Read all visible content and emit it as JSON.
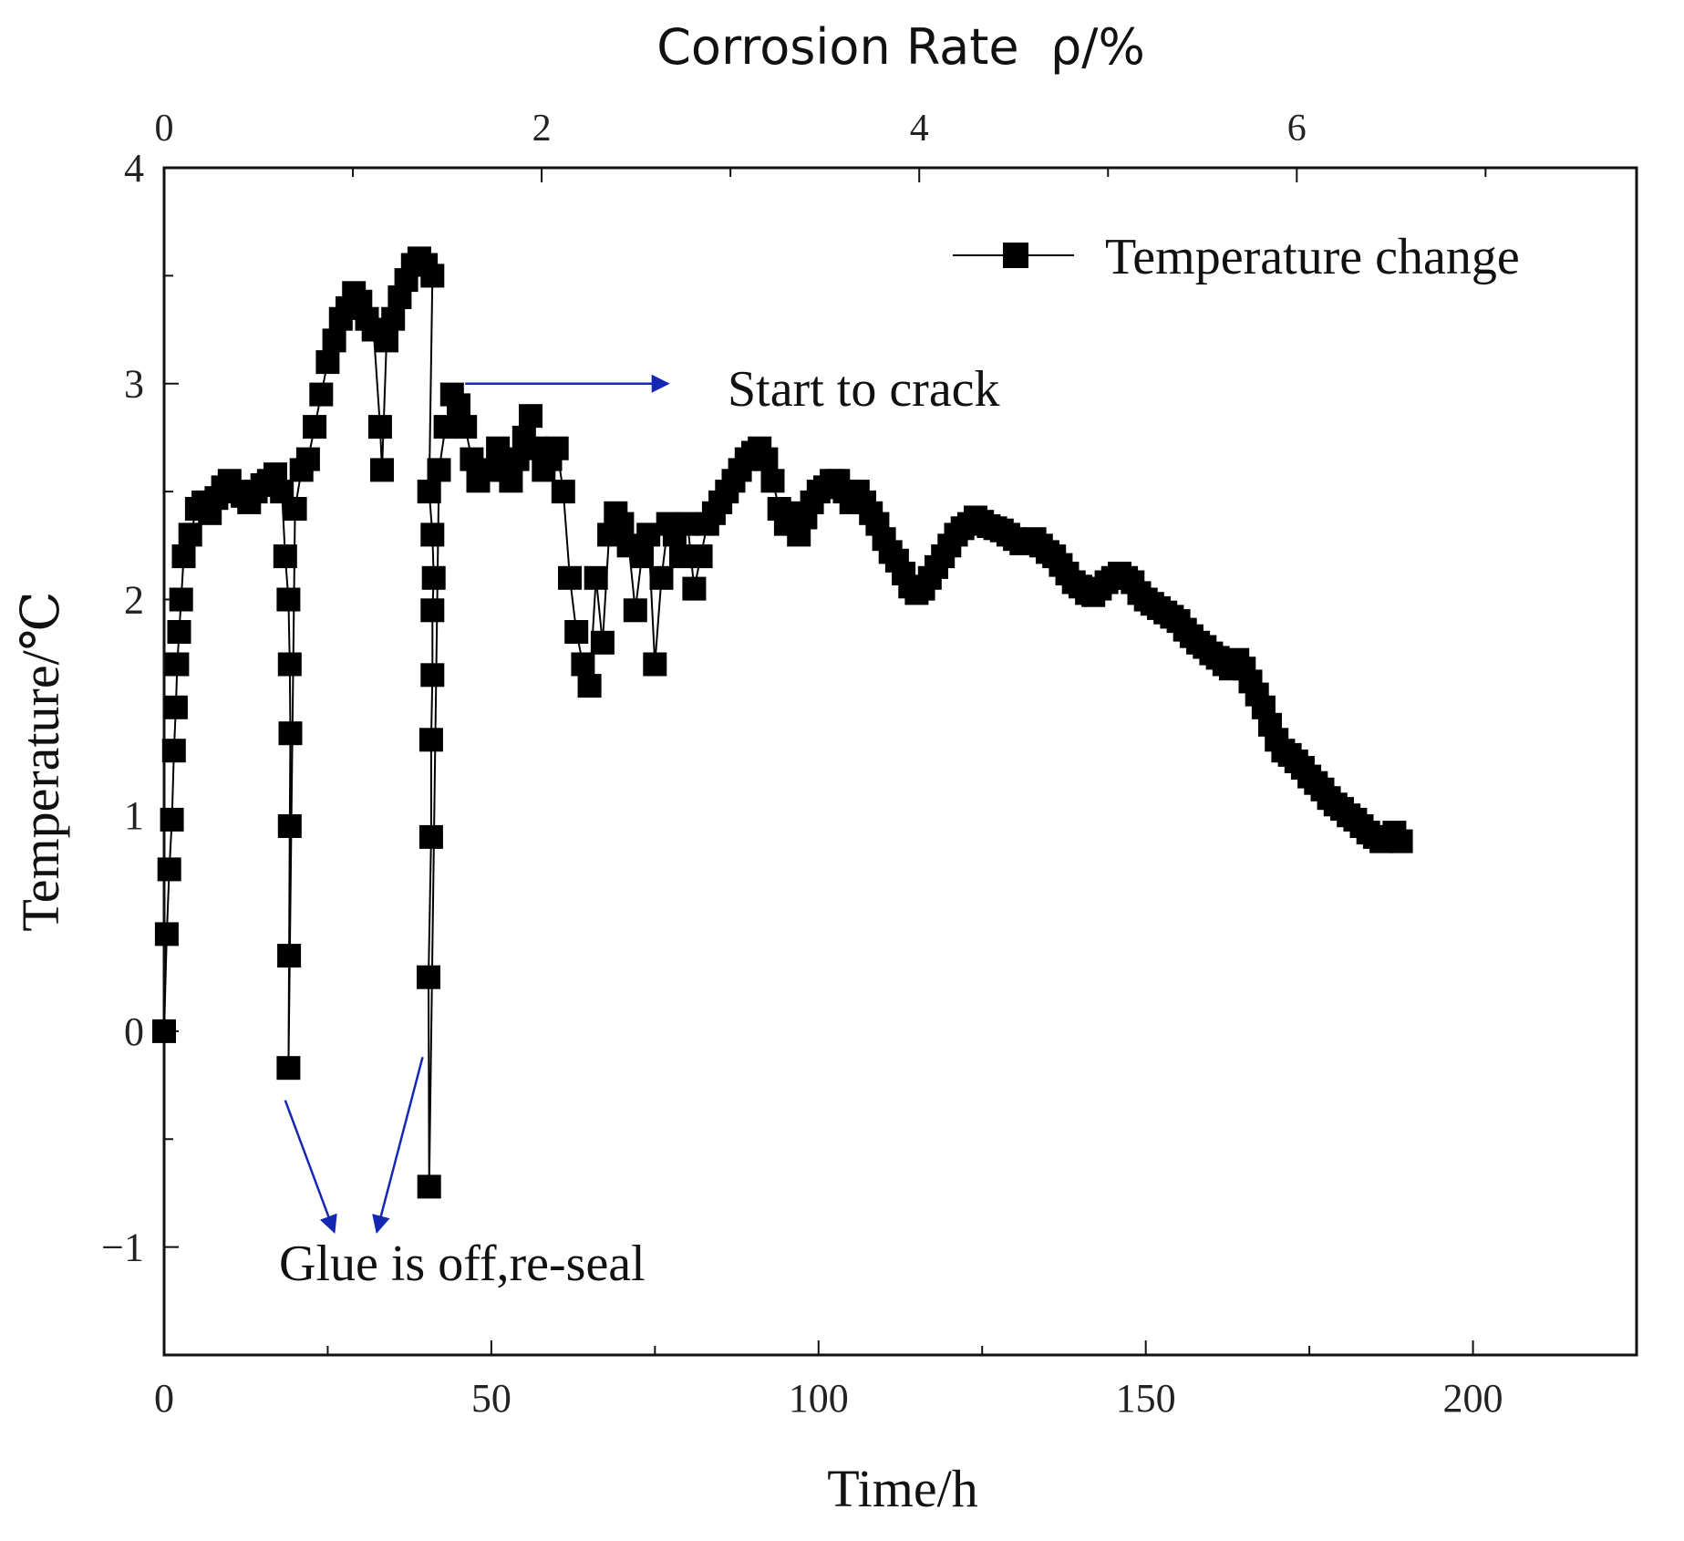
{
  "chart_data": {
    "type": "scatter",
    "xlabel": "Time/h",
    "ylabel": "Temperature/℃",
    "top_xlabel": "Corrosion Rate  ρ/%",
    "xlim": [
      0,
      225
    ],
    "ylim": [
      -1.5,
      4
    ],
    "x2lim": [
      0,
      7.8
    ],
    "x_ticks": [
      0,
      50,
      100,
      150,
      200
    ],
    "y_ticks": [
      -1,
      0,
      1,
      2,
      3,
      4
    ],
    "x2_ticks": [
      0,
      2,
      4,
      6
    ],
    "tick_text": {
      "x": [
        "0",
        "50",
        "100",
        "150",
        "200"
      ],
      "y": [
        "−1",
        "0",
        "1",
        "2",
        "3",
        "4"
      ],
      "x2": [
        "0",
        "2",
        "4",
        "6"
      ]
    },
    "legend": {
      "position": "top-right",
      "entries": [
        "Temperature change"
      ]
    },
    "annotations": [
      {
        "text": "Start to crack",
        "arrow_from": [
          46,
          3.0
        ],
        "arrow_to": [
          77,
          3.0
        ]
      },
      {
        "text": "Glue is off,re-seal",
        "arrows": [
          {
            "from": [
              18.5,
              -0.32
            ],
            "to": [
              26,
              -0.93
            ]
          },
          {
            "from": [
              39.5,
              -0.12
            ],
            "to": [
              32.5,
              -0.93
            ]
          }
        ]
      }
    ],
    "series": [
      {
        "name": "Temperature change",
        "marker": "square",
        "color": "#000000",
        "points": [
          [
            0,
            0
          ],
          [
            0.4,
            0.45
          ],
          [
            0.8,
            0.75
          ],
          [
            1.2,
            0.98
          ],
          [
            1.5,
            1.3
          ],
          [
            1.8,
            1.5
          ],
          [
            2,
            1.7
          ],
          [
            2.3,
            1.85
          ],
          [
            2.6,
            2.0
          ],
          [
            3,
            2.2
          ],
          [
            4,
            2.3
          ],
          [
            5,
            2.42
          ],
          [
            6,
            2.45
          ],
          [
            7,
            2.4
          ],
          [
            8,
            2.47
          ],
          [
            9,
            2.52
          ],
          [
            10,
            2.55
          ],
          [
            11,
            2.5
          ],
          [
            12,
            2.48
          ],
          [
            13,
            2.45
          ],
          [
            14,
            2.5
          ],
          [
            15,
            2.53
          ],
          [
            16,
            2.55
          ],
          [
            17,
            2.58
          ],
          [
            18,
            2.5
          ],
          [
            18.5,
            2.2
          ],
          [
            19,
            2.0
          ],
          [
            19.2,
            1.7
          ],
          [
            19.3,
            1.38
          ],
          [
            19.2,
            0.95
          ],
          [
            19.1,
            0.35
          ],
          [
            19,
            -0.17
          ],
          [
            20,
            2.42
          ],
          [
            21,
            2.6
          ],
          [
            22,
            2.65
          ],
          [
            23,
            2.8
          ],
          [
            24,
            2.95
          ],
          [
            25,
            3.1
          ],
          [
            26,
            3.2
          ],
          [
            27,
            3.3
          ],
          [
            28,
            3.35
          ],
          [
            29,
            3.42
          ],
          [
            30,
            3.38
          ],
          [
            31,
            3.3
          ],
          [
            32,
            3.25
          ],
          [
            33,
            2.8
          ],
          [
            33.3,
            2.6
          ],
          [
            34,
            3.2
          ],
          [
            35,
            3.3
          ],
          [
            36,
            3.4
          ],
          [
            37,
            3.48
          ],
          [
            38,
            3.55
          ],
          [
            39,
            3.58
          ],
          [
            40,
            3.55
          ],
          [
            41,
            3.5
          ],
          [
            40.5,
            2.5
          ],
          [
            41,
            2.3
          ],
          [
            41.2,
            2.1
          ],
          [
            41,
            1.95
          ],
          [
            41,
            1.65
          ],
          [
            40.8,
            1.35
          ],
          [
            40.8,
            0.9
          ],
          [
            40.4,
            0.25
          ],
          [
            40.5,
            -0.72
          ],
          [
            42,
            2.6
          ],
          [
            43,
            2.8
          ],
          [
            44,
            2.95
          ],
          [
            45,
            2.9
          ],
          [
            46,
            2.8
          ],
          [
            47,
            2.65
          ],
          [
            48,
            2.55
          ],
          [
            50,
            2.6
          ],
          [
            51,
            2.7
          ],
          [
            52,
            2.6
          ],
          [
            53,
            2.55
          ],
          [
            54,
            2.65
          ],
          [
            55,
            2.75
          ],
          [
            56,
            2.85
          ],
          [
            57,
            2.7
          ],
          [
            58,
            2.6
          ],
          [
            59,
            2.65
          ],
          [
            60,
            2.7
          ],
          [
            61,
            2.5
          ],
          [
            62,
            2.1
          ],
          [
            63,
            1.85
          ],
          [
            64,
            1.7
          ],
          [
            65,
            1.6
          ],
          [
            66,
            2.1
          ],
          [
            67,
            1.8
          ],
          [
            68,
            2.3
          ],
          [
            69,
            2.4
          ],
          [
            70,
            2.35
          ],
          [
            71,
            2.25
          ],
          [
            72,
            1.95
          ],
          [
            73,
            2.2
          ],
          [
            74,
            2.3
          ],
          [
            75,
            1.7
          ],
          [
            76,
            2.1
          ],
          [
            77,
            2.35
          ],
          [
            78,
            2.3
          ],
          [
            79,
            2.2
          ],
          [
            80,
            2.35
          ],
          [
            81,
            2.05
          ],
          [
            82,
            2.2
          ],
          [
            83,
            2.35
          ],
          [
            84,
            2.4
          ],
          [
            85,
            2.45
          ],
          [
            86,
            2.5
          ],
          [
            87,
            2.55
          ],
          [
            88,
            2.6
          ],
          [
            89,
            2.65
          ],
          [
            90,
            2.68
          ],
          [
            91,
            2.7
          ],
          [
            92,
            2.65
          ],
          [
            93,
            2.55
          ],
          [
            94,
            2.42
          ],
          [
            95,
            2.35
          ],
          [
            96,
            2.4
          ],
          [
            97,
            2.3
          ],
          [
            98,
            2.38
          ],
          [
            99,
            2.45
          ],
          [
            100,
            2.5
          ],
          [
            101,
            2.52
          ],
          [
            102,
            2.55
          ],
          [
            103,
            2.55
          ],
          [
            104,
            2.5
          ],
          [
            105,
            2.45
          ],
          [
            106,
            2.5
          ],
          [
            107,
            2.45
          ],
          [
            108,
            2.4
          ],
          [
            109,
            2.35
          ],
          [
            110,
            2.28
          ],
          [
            111,
            2.22
          ],
          [
            112,
            2.18
          ],
          [
            113,
            2.12
          ],
          [
            114,
            2.06
          ],
          [
            115,
            2.03
          ],
          [
            116,
            2.05
          ],
          [
            117,
            2.1
          ],
          [
            118,
            2.15
          ],
          [
            119,
            2.2
          ],
          [
            120,
            2.25
          ],
          [
            121,
            2.3
          ],
          [
            122,
            2.33
          ],
          [
            123,
            2.35
          ],
          [
            124,
            2.38
          ],
          [
            125,
            2.36
          ],
          [
            126,
            2.34
          ],
          [
            127,
            2.33
          ],
          [
            128,
            2.32
          ],
          [
            129,
            2.3
          ],
          [
            130,
            2.28
          ],
          [
            131,
            2.26
          ],
          [
            132,
            2.27
          ],
          [
            133,
            2.28
          ],
          [
            134,
            2.25
          ],
          [
            135,
            2.22
          ],
          [
            136,
            2.2
          ],
          [
            137,
            2.16
          ],
          [
            138,
            2.12
          ],
          [
            139,
            2.08
          ],
          [
            140,
            2.06
          ],
          [
            141,
            2.03
          ],
          [
            142,
            2.02
          ],
          [
            143,
            2.05
          ],
          [
            144,
            2.08
          ],
          [
            145,
            2.1
          ],
          [
            146,
            2.12
          ],
          [
            147,
            2.1
          ],
          [
            148,
            2.08
          ],
          [
            149,
            2.03
          ],
          [
            150,
            2.0
          ],
          [
            151,
            1.98
          ],
          [
            152,
            1.96
          ],
          [
            153,
            1.94
          ],
          [
            154,
            1.92
          ],
          [
            155,
            1.9
          ],
          [
            156,
            1.86
          ],
          [
            157,
            1.83
          ],
          [
            158,
            1.8
          ],
          [
            159,
            1.78
          ],
          [
            160,
            1.75
          ],
          [
            161,
            1.73
          ],
          [
            162,
            1.7
          ],
          [
            163,
            1.68
          ],
          [
            164,
            1.72
          ],
          [
            165,
            1.68
          ],
          [
            166,
            1.62
          ],
          [
            167,
            1.56
          ],
          [
            168,
            1.5
          ],
          [
            169,
            1.42
          ],
          [
            170,
            1.35
          ],
          [
            171,
            1.3
          ],
          [
            172,
            1.28
          ],
          [
            173,
            1.25
          ],
          [
            174,
            1.22
          ],
          [
            175,
            1.18
          ],
          [
            176,
            1.15
          ],
          [
            177,
            1.12
          ],
          [
            178,
            1.08
          ],
          [
            179,
            1.05
          ],
          [
            180,
            1.03
          ],
          [
            181,
            1.0
          ],
          [
            182,
            0.98
          ],
          [
            183,
            0.95
          ],
          [
            184,
            0.92
          ],
          [
            185,
            0.9
          ],
          [
            186,
            0.88
          ],
          [
            187,
            0.9
          ],
          [
            188,
            0.92
          ],
          [
            189,
            0.88
          ]
        ]
      }
    ]
  },
  "colors": {
    "axis": "#111111",
    "marker": "#000000",
    "arrow": "#1428b4",
    "background": "#ffffff"
  }
}
